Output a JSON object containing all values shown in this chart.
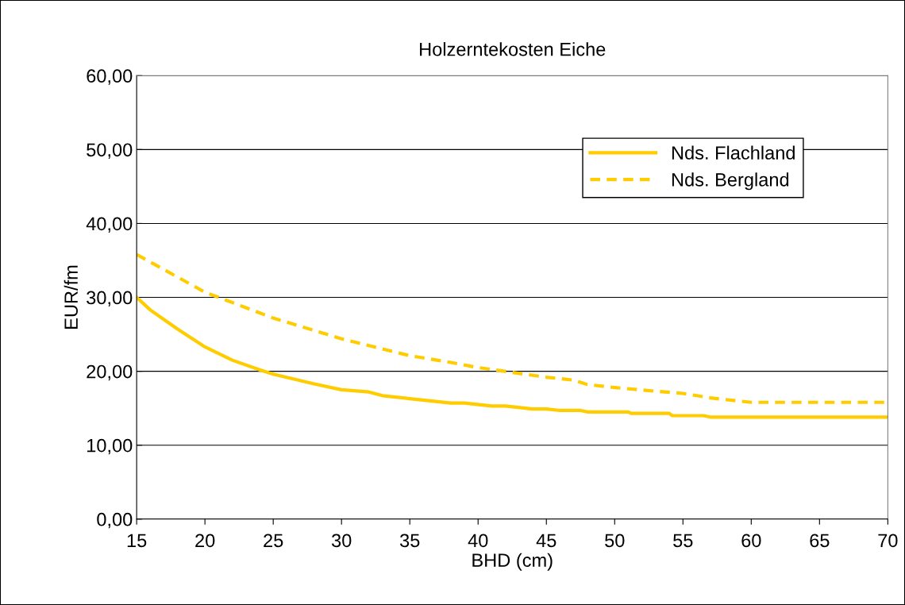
{
  "chart_data": {
    "type": "line",
    "title": "Holzerntekosten Eiche",
    "xlabel": "BHD (cm)",
    "ylabel": "EUR/fm",
    "xlim": [
      15,
      70
    ],
    "xticks": [
      15,
      20,
      25,
      30,
      35,
      40,
      45,
      50,
      55,
      60,
      65,
      70
    ],
    "ylim": [
      0,
      60
    ],
    "yticks": [
      {
        "value": 0,
        "label": "0,00"
      },
      {
        "value": 10,
        "label": "10,00"
      },
      {
        "value": 20,
        "label": "20,00"
      },
      {
        "value": 30,
        "label": "30,00"
      },
      {
        "value": 40,
        "label": "40,00"
      },
      {
        "value": 50,
        "label": "50,00"
      },
      {
        "value": 60,
        "label": "60,00"
      }
    ],
    "grid": "y",
    "legend": "top right",
    "marker": "none",
    "series": [
      {
        "name": "Nds. Flachland",
        "color": "#ffcc00",
        "line_style": "solid",
        "x": [
          15,
          16,
          17,
          18,
          19,
          20,
          22,
          24,
          25,
          28,
          30,
          32,
          33,
          35,
          38,
          39,
          41,
          42,
          44,
          45,
          46,
          47.5,
          48,
          51,
          51.2,
          54,
          54.2,
          56.5,
          57,
          70
        ],
        "values": [
          30,
          28.3,
          27,
          25.7,
          24.5,
          23.3,
          21.5,
          20.2,
          19.6,
          18.3,
          17.5,
          17.2,
          16.7,
          16.3,
          15.7,
          15.7,
          15.3,
          15.3,
          14.9,
          14.9,
          14.7,
          14.7,
          14.5,
          14.5,
          14.3,
          14.3,
          14,
          14,
          13.8,
          13.8
        ]
      },
      {
        "name": "Nds. Bergland",
        "color": "#ffcc00",
        "line_style": "dashed",
        "x": [
          15,
          20,
          25,
          30,
          35,
          38,
          40,
          45,
          47,
          48,
          50,
          53,
          55,
          57,
          60,
          70
        ],
        "values": [
          35.8,
          30.7,
          27.2,
          24.4,
          22.1,
          21.2,
          20.5,
          19.2,
          18.8,
          18.2,
          17.8,
          17.3,
          17,
          16.4,
          15.8,
          15.8
        ]
      }
    ]
  }
}
